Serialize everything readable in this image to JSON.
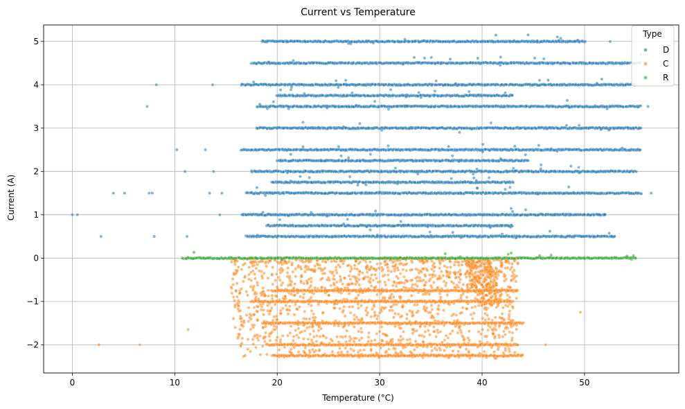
{
  "chart_data": {
    "type": "scatter",
    "title": "Current vs Temperature",
    "xlabel": "Temperature (°C)",
    "ylabel": "Current (A)",
    "xlim": [
      -2.8,
      59.2
    ],
    "ylim": [
      -2.65,
      5.38
    ],
    "xticks": [
      0,
      10,
      20,
      30,
      40,
      50
    ],
    "yticks": [
      -2,
      -1,
      0,
      1,
      2,
      3,
      4,
      5
    ],
    "ytick_labels": [
      "−2",
      "−1",
      "0",
      "1",
      "2",
      "3",
      "4",
      "5"
    ],
    "grid": true,
    "legend": {
      "title": "Type",
      "position": "top-right",
      "entries": [
        "D",
        "C",
        "R"
      ]
    },
    "series": [
      {
        "name": "D",
        "color": "#1f77b4",
        "bands": [
          {
            "y": 5.0,
            "x_range": [
              18.5,
              50.0
            ]
          },
          {
            "y": 4.5,
            "x_range": [
              17.5,
              55.5
            ]
          },
          {
            "y": 4.0,
            "x_range": [
              16.5,
              55.0
            ]
          },
          {
            "y": 3.75,
            "x_range": [
              20.0,
              43.0
            ]
          },
          {
            "y": 3.5,
            "x_range": [
              18.0,
              55.5
            ]
          },
          {
            "y": 3.0,
            "x_range": [
              18.0,
              55.5
            ]
          },
          {
            "y": 2.5,
            "x_range": [
              16.5,
              55.5
            ]
          },
          {
            "y": 2.25,
            "x_range": [
              20.0,
              44.5
            ]
          },
          {
            "y": 2.0,
            "x_range": [
              17.5,
              55.0
            ]
          },
          {
            "y": 1.75,
            "x_range": [
              19.5,
              43.0
            ]
          },
          {
            "y": 1.5,
            "x_range": [
              17.0,
              55.5
            ]
          },
          {
            "y": 1.0,
            "x_range": [
              16.5,
              52.0
            ]
          },
          {
            "y": 0.75,
            "x_range": [
              19.0,
              43.0
            ]
          },
          {
            "y": 0.5,
            "x_range": [
              17.0,
              53.0
            ]
          }
        ],
        "outliers": [
          {
            "x": 0.0,
            "y": 1.0
          },
          {
            "x": 0.5,
            "y": 1.0
          },
          {
            "x": 2.8,
            "y": 0.5
          },
          {
            "x": 4.0,
            "y": 1.5
          },
          {
            "x": 5.1,
            "y": 1.5
          },
          {
            "x": 7.5,
            "y": 1.5
          },
          {
            "x": 7.8,
            "y": 1.5
          },
          {
            "x": 8.0,
            "y": 0.5
          },
          {
            "x": 7.3,
            "y": 3.5
          },
          {
            "x": 8.2,
            "y": 4.0
          },
          {
            "x": 10.2,
            "y": 2.5
          },
          {
            "x": 11.0,
            "y": 2.0
          },
          {
            "x": 11.2,
            "y": 0.5
          },
          {
            "x": 13.0,
            "y": 2.5
          },
          {
            "x": 13.4,
            "y": 1.5
          },
          {
            "x": 13.7,
            "y": 4.0
          },
          {
            "x": 13.8,
            "y": 2.0
          },
          {
            "x": 14.4,
            "y": 1.0
          },
          {
            "x": 14.6,
            "y": 1.5
          },
          {
            "x": 56.5,
            "y": 1.5
          },
          {
            "x": 56.2,
            "y": 3.5
          },
          {
            "x": 52.5,
            "y": 5.0
          },
          {
            "x": 55.5,
            "y": 4.7
          },
          {
            "x": 37.8,
            "y": 2.9
          }
        ]
      },
      {
        "name": "C",
        "color": "#ff7f0e",
        "bands": [
          {
            "y": -0.75,
            "x_range": [
              19.5,
              43.5
            ]
          },
          {
            "y": -1.0,
            "x_range": [
              17.5,
              43.0
            ]
          },
          {
            "y": -1.5,
            "x_range": [
              18.5,
              44.0
            ]
          },
          {
            "y": -2.0,
            "x_range": [
              19.0,
              43.5
            ]
          },
          {
            "y": -2.25,
            "x_range": [
              19.5,
              44.0
            ]
          }
        ],
        "cloud": {
          "x_range": [
            15.5,
            43.5
          ],
          "y_range": [
            -2.3,
            0.0
          ]
        },
        "outliers": [
          {
            "x": 2.6,
            "y": -2.0
          },
          {
            "x": 6.6,
            "y": -2.0
          },
          {
            "x": 11.3,
            "y": -1.65
          },
          {
            "x": 49.6,
            "y": -1.25
          },
          {
            "x": 46.2,
            "y": -2.0
          }
        ]
      },
      {
        "name": "R",
        "color": "#2ca02c",
        "bands": [
          {
            "y": 0.0,
            "x_range": [
              10.8,
              55.0
            ]
          }
        ],
        "outliers": []
      }
    ]
  }
}
